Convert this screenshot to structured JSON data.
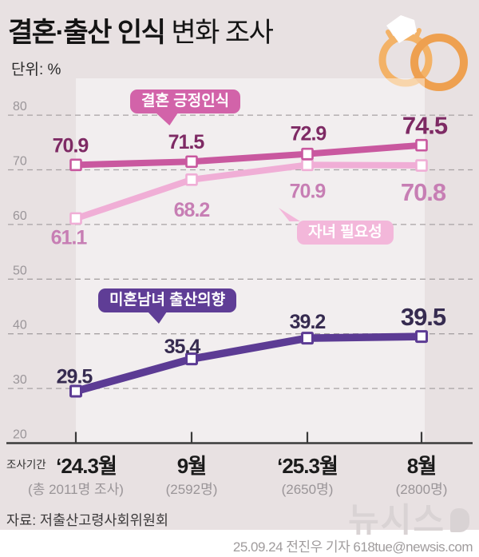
{
  "header": {
    "title_emphasis": "결혼·출산 인식",
    "title_rest": " 변화 조사",
    "unit": "단위: %",
    "icon": "wedding-rings-icon"
  },
  "chart_data": {
    "type": "line",
    "x_prefix_label": "조사기간",
    "categories": [
      "‘24.3월",
      "9월",
      "‘25.3월",
      "8월"
    ],
    "category_sublabels": [
      "(총 2011명 조사)",
      "(2592명)",
      "(2650명)",
      "(2800명)"
    ],
    "yticks": [
      80,
      70,
      60,
      50,
      40,
      30,
      20
    ],
    "ylim": [
      20,
      82
    ],
    "grid": "horizontal-dashed",
    "series": [
      {
        "name": "결혼 긍정인식",
        "values": [
          70.9,
          71.5,
          72.9,
          74.5
        ],
        "line_color": "#c9589f",
        "label_color": "#7e2a64",
        "pill_color": "#d263a9"
      },
      {
        "name": "자녀 필요성",
        "values": [
          61.1,
          68.2,
          70.9,
          70.8
        ],
        "line_color": "#f0aed6",
        "label_color": "#c77eb4",
        "pill_color": "#f3b7da"
      },
      {
        "name": "미혼남녀 출산의향",
        "values": [
          29.5,
          35.4,
          39.2,
          39.5
        ],
        "line_color": "#5c3b94",
        "label_color": "#362b50",
        "pill_color": "#5f3d96"
      }
    ]
  },
  "footer": {
    "source": "자료: 저출산고령사회위원회",
    "credit": "25.09.24 전진우 기자 618tue@newsis.com",
    "watermark": "뉴시스"
  },
  "colors": {
    "background": "#e8e1e2",
    "plot_band": "rgba(255,255,255,0.45)",
    "axis": "#3b3b3b",
    "grid": "#a8a2a4",
    "tick_label": "#9b969a",
    "ring_left": "#f3b267",
    "ring_right": "#eea050",
    "diamond": "#ffffff"
  }
}
